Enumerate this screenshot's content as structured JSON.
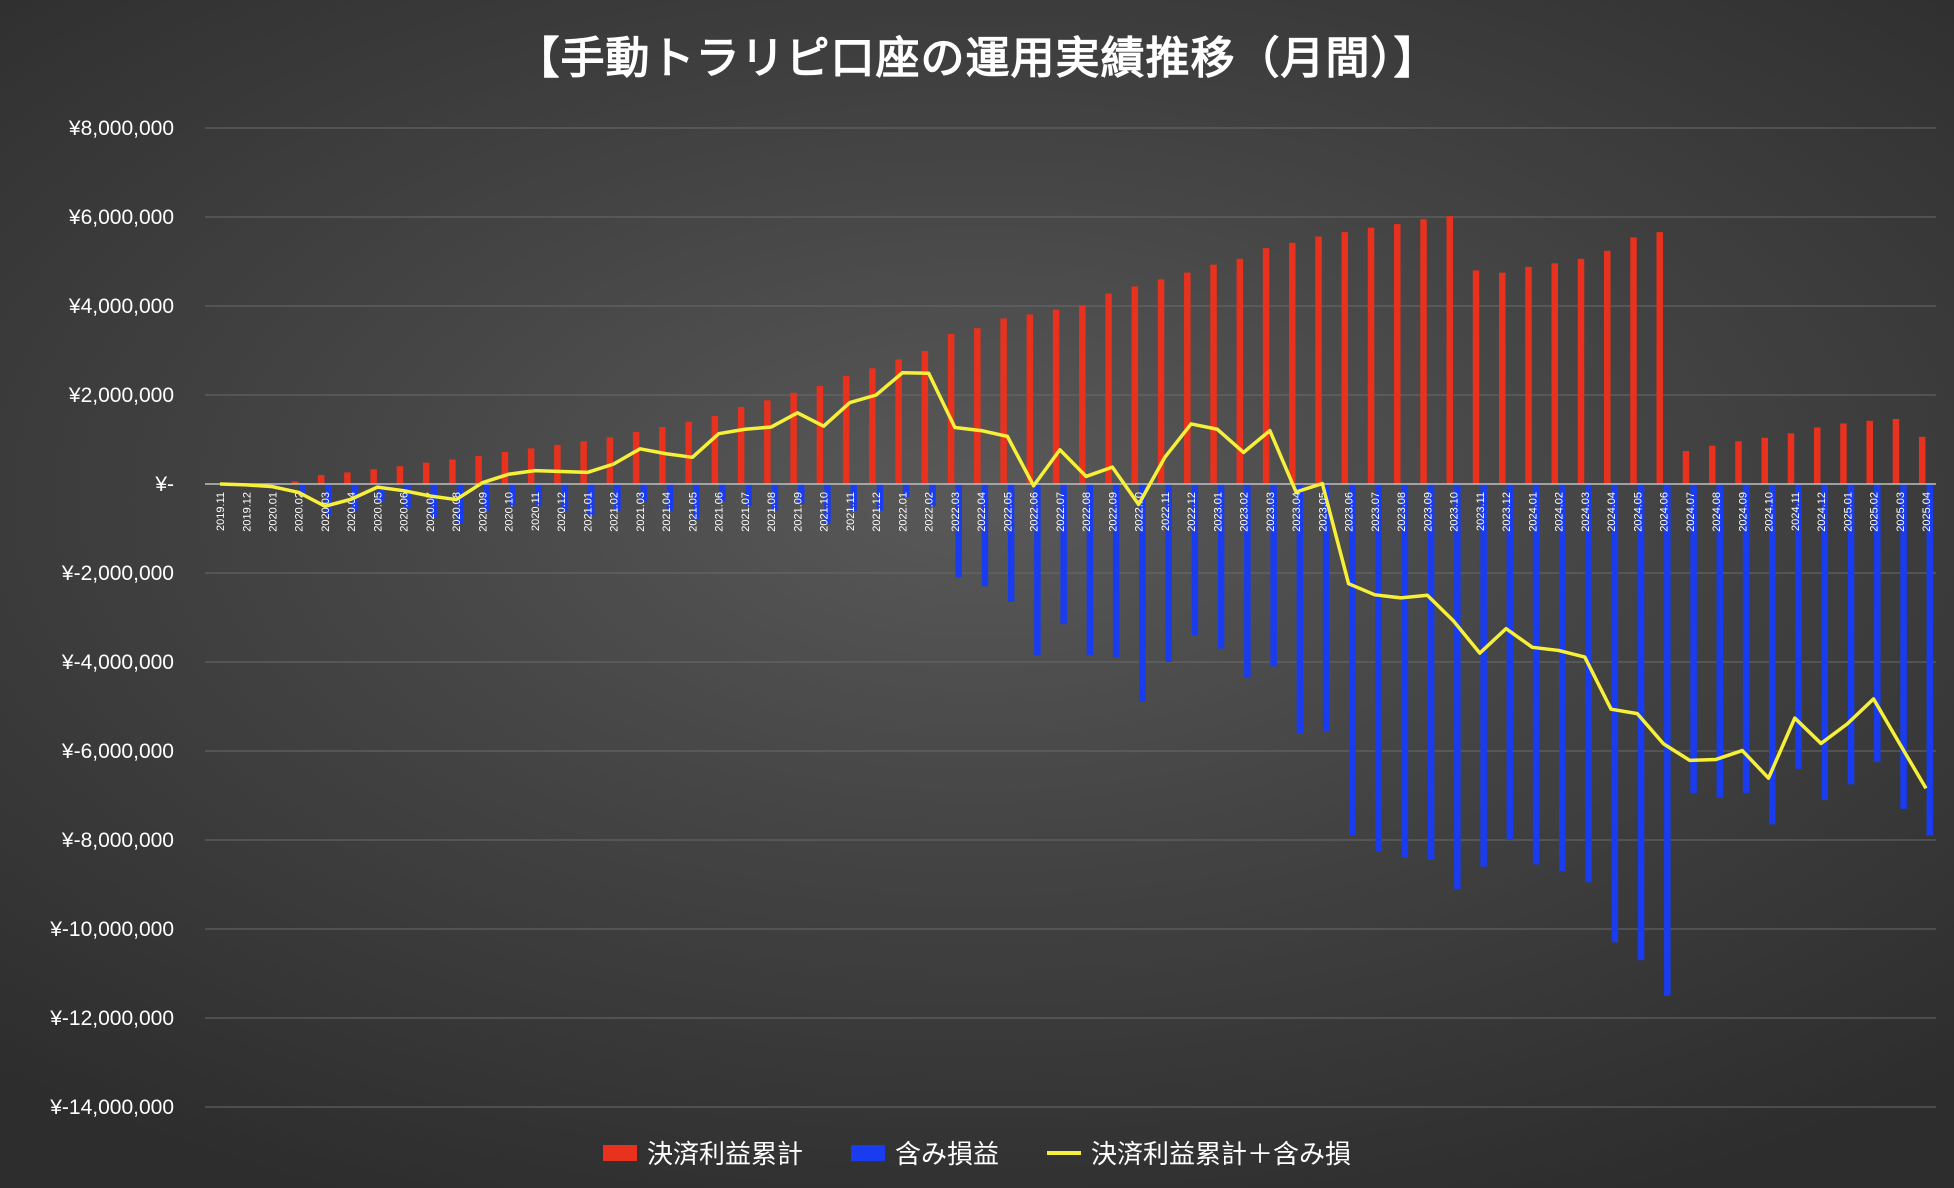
{
  "chart_data": {
    "type": "bar",
    "title": "【手動トラリピ口座の運用実績推移（月間）】",
    "ylim": [
      -14000000,
      8000000
    ],
    "y_ticks": [
      {
        "value": 8000000,
        "label": "¥8,000,000"
      },
      {
        "value": 6000000,
        "label": "¥6,000,000"
      },
      {
        "value": 4000000,
        "label": "¥4,000,000"
      },
      {
        "value": 2000000,
        "label": "¥2,000,000"
      },
      {
        "value": 0,
        "label": "¥-"
      },
      {
        "value": -2000000,
        "label": "¥-2,000,000"
      },
      {
        "value": -4000000,
        "label": "¥-4,000,000"
      },
      {
        "value": -6000000,
        "label": "¥-6,000,000"
      },
      {
        "value": -8000000,
        "label": "¥-8,000,000"
      },
      {
        "value": -10000000,
        "label": "¥-10,000,000"
      },
      {
        "value": -12000000,
        "label": "¥-12,000,000"
      },
      {
        "value": -14000000,
        "label": "¥-14,000,000"
      }
    ],
    "grid": true,
    "legend_position": "bottom",
    "categories": [
      "2019.11",
      "2019.12",
      "2020.01",
      "2020.02",
      "2020.03",
      "2020.04",
      "2020.05",
      "2020.06",
      "2020.07",
      "2020.08",
      "2020.09",
      "2020.10",
      "2020.11",
      "2020.12",
      "2021.01",
      "2021.02",
      "2021.03",
      "2021.04",
      "2021.05",
      "2021.06",
      "2021.07",
      "2021.08",
      "2021.09",
      "2021.10",
      "2021.11",
      "2021.12",
      "2022.01",
      "2022.02",
      "2022.03",
      "2022.04",
      "2022.05",
      "2022.06",
      "2022.07",
      "2022.08",
      "2022.09",
      "2022.10",
      "2022.11",
      "2022.12",
      "2023.01",
      "2023.02",
      "2023.03",
      "2023.04",
      "2023.05",
      "2023.06",
      "2023.07",
      "2023.08",
      "2023.09",
      "2023.10",
      "2023.11",
      "2023.12",
      "2024.01",
      "2024.02",
      "2024.03",
      "2024.04",
      "2024.05",
      "2024.06",
      "2024.07",
      "2024.08",
      "2024.09",
      "2024.10",
      "2024.11",
      "2024.12",
      "2025.01",
      "2025.02",
      "2025.03",
      "2025.04"
    ],
    "series": [
      {
        "name": "決済利益累計",
        "color": "#e8321e",
        "kind": "bar",
        "values": [
          0,
          10000,
          20000,
          60000,
          200000,
          260000,
          330000,
          400000,
          480000,
          550000,
          630000,
          720000,
          800000,
          880000,
          960000,
          1050000,
          1170000,
          1280000,
          1400000,
          1530000,
          1730000,
          1880000,
          2050000,
          2200000,
          2430000,
          2600000,
          2800000,
          2990000,
          3370000,
          3500000,
          3720000,
          3810000,
          3920000,
          4020000,
          4280000,
          4440000,
          4600000,
          4750000,
          4930000,
          5060000,
          5300000,
          5420000,
          5560000,
          5660000,
          5760000,
          5840000,
          5950000,
          6020000,
          4800000,
          4750000,
          4880000,
          4960000,
          5060000,
          5240000,
          5540000,
          5660000,
          740000,
          860000,
          960000,
          1040000,
          1140000,
          1270000,
          1360000,
          1420000,
          1460000,
          1060000
        ]
      },
      {
        "name": "含み損益",
        "color": "#1a3cf0",
        "kind": "bar",
        "values": [
          0,
          -30000,
          -80000,
          -250000,
          -700000,
          -600000,
          -400000,
          -550000,
          -750000,
          -900000,
          -600000,
          -500000,
          -500000,
          -600000,
          -700000,
          -600000,
          -380000,
          -600000,
          -800000,
          -400000,
          -500000,
          -600000,
          -450000,
          -900000,
          -600000,
          -600000,
          -300000,
          -500000,
          -2100000,
          -2300000,
          -2650000,
          -3850000,
          -3150000,
          -3850000,
          -3900000,
          -4900000,
          -4000000,
          -3400000,
          -3700000,
          -4350000,
          -4100000,
          -5600000,
          -5550000,
          -7900000,
          -8250000,
          -8400000,
          -8450000,
          -9100000,
          -8600000,
          -8000000,
          -8550000,
          -8700000,
          -8950000,
          -10300000,
          -10700000,
          -11500000,
          -6950000,
          -7050000,
          -6950000,
          -7650000,
          -6400000,
          -7100000,
          -6750000,
          -6250000,
          -7300000,
          -7900000
        ]
      },
      {
        "name": "決済利益累計＋含み損",
        "color": "#f7f03a",
        "kind": "line",
        "values": [
          0,
          -20000,
          -60000,
          -190000,
          -500000,
          -340000,
          -70000,
          -150000,
          -270000,
          -350000,
          30000,
          220000,
          300000,
          280000,
          260000,
          450000,
          790000,
          680000,
          600000,
          1130000,
          1230000,
          1280000,
          1600000,
          1300000,
          1830000,
          2000000,
          2500000,
          2490000,
          1270000,
          1200000,
          1070000,
          -40000,
          770000,
          170000,
          380000,
          -460000,
          600000,
          1350000,
          1230000,
          710000,
          1200000,
          -180000,
          10000,
          -2240000,
          -2490000,
          -2560000,
          -2500000,
          -3080000,
          -3800000,
          -3250000,
          -3670000,
          -3740000,
          -3890000,
          -5060000,
          -5160000,
          -5840000,
          -6210000,
          -6190000,
          -5990000,
          -6610000,
          -5260000,
          -5830000,
          -5390000,
          -4830000,
          -5840000,
          -6840000
        ]
      }
    ]
  }
}
